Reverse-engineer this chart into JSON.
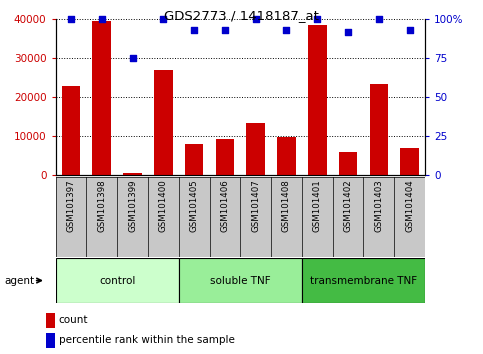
{
  "title": "GDS2773 / 1418187_at",
  "samples": [
    "GSM101397",
    "GSM101398",
    "GSM101399",
    "GSM101400",
    "GSM101405",
    "GSM101406",
    "GSM101407",
    "GSM101408",
    "GSM101401",
    "GSM101402",
    "GSM101403",
    "GSM101404"
  ],
  "counts": [
    23000,
    39500,
    500,
    27000,
    8000,
    9200,
    13500,
    9700,
    38500,
    6000,
    23500,
    7000
  ],
  "percentiles": [
    100,
    100,
    75,
    100,
    93,
    93,
    100,
    93,
    100,
    92,
    100,
    93
  ],
  "bar_color": "#cc0000",
  "dot_color": "#0000cc",
  "ylim_left": [
    0,
    40000
  ],
  "ylim_right": [
    0,
    100
  ],
  "yticks_left": [
    0,
    10000,
    20000,
    30000,
    40000
  ],
  "ytick_labels_left": [
    "0",
    "10000",
    "20000",
    "30000",
    "40000"
  ],
  "yticks_right": [
    0,
    25,
    50,
    75,
    100
  ],
  "ytick_labels_right": [
    "0",
    "25",
    "50",
    "75",
    "100%"
  ],
  "groups": [
    {
      "label": "control",
      "start": 0,
      "end": 4,
      "color": "#ccffcc"
    },
    {
      "label": "soluble TNF",
      "start": 4,
      "end": 8,
      "color": "#99ee99"
    },
    {
      "label": "transmembrane TNF",
      "start": 8,
      "end": 12,
      "color": "#44bb44"
    }
  ],
  "agent_label": "agent",
  "legend_count_label": "count",
  "legend_percentile_label": "percentile rank within the sample",
  "bar_color_legend": "#cc0000",
  "dot_color_legend": "#0000cc",
  "tick_color_left": "#cc0000",
  "tick_color_right": "#0000cc",
  "bar_width": 0.6,
  "figsize": [
    4.83,
    3.54
  ],
  "dpi": 100
}
